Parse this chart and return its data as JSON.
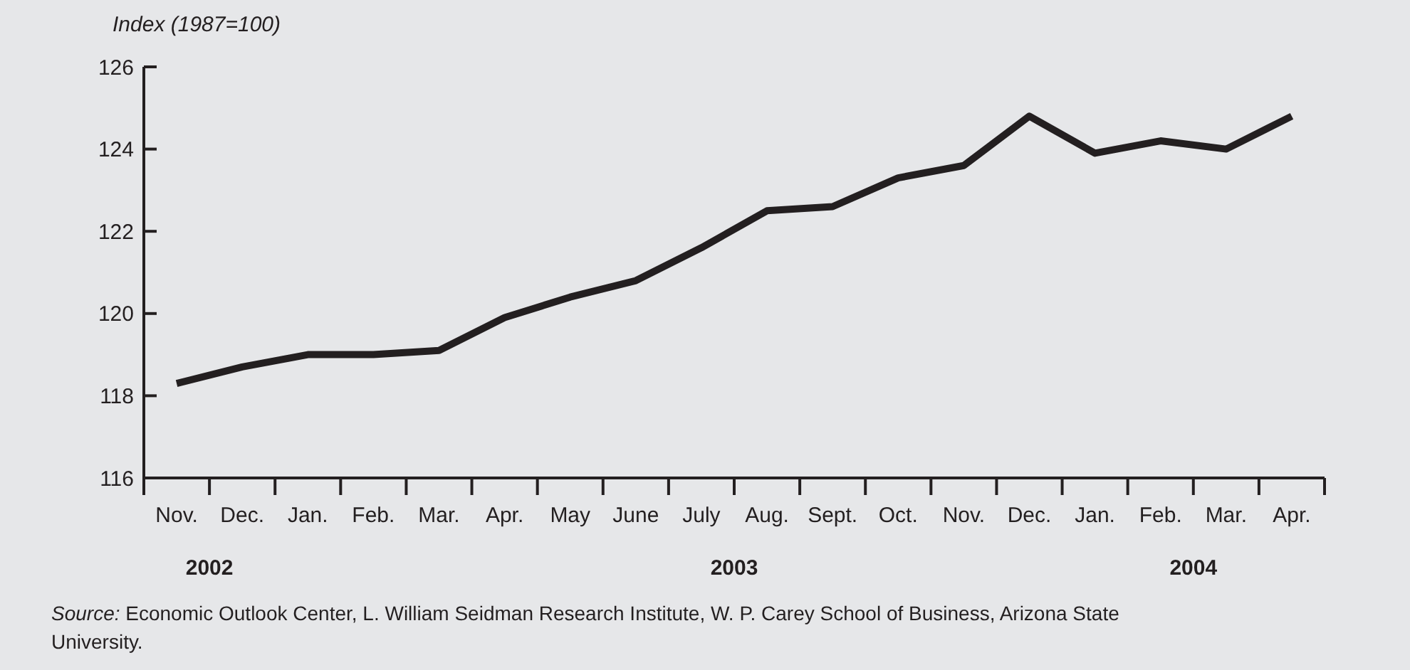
{
  "chart_data": {
    "type": "line",
    "ylabel": "Index (1987=100)",
    "categories": [
      "Nov.",
      "Dec.",
      "Jan.",
      "Feb.",
      "Mar.",
      "Apr.",
      "May",
      "June",
      "July",
      "Aug.",
      "Sept.",
      "Oct.",
      "Nov.",
      "Dec.",
      "Jan.",
      "Feb.",
      "Mar.",
      "Apr."
    ],
    "series": [
      {
        "color": "#231f20",
        "values": [
          118.3,
          118.7,
          119.0,
          119.0,
          119.1,
          119.9,
          120.4,
          120.8,
          121.6,
          122.5,
          122.6,
          123.3,
          123.6,
          124.8,
          123.9,
          124.2,
          124.0,
          124.8
        ]
      }
    ],
    "ylim": [
      116,
      126
    ],
    "yticks": [
      116,
      118,
      120,
      122,
      124,
      126
    ],
    "grid": false,
    "marker": "none",
    "line_style": "solid",
    "annotations": [
      "2002",
      "2003",
      "2004",
      "Source: Economic Outlook Center, L. William Seidman Research Institute, W. P. Carey School of Business, Arizona State University."
    ]
  }
}
